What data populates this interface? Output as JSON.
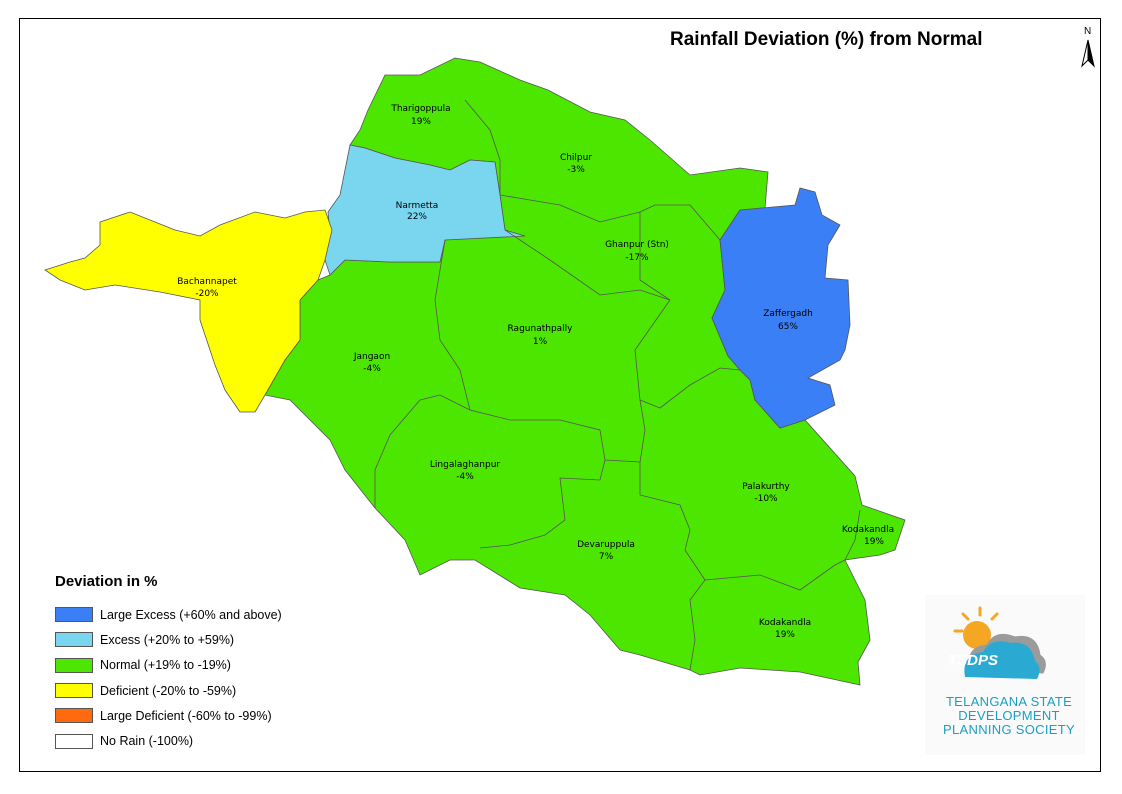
{
  "title": "Rainfall Deviation (%) from Normal",
  "north_label": "N",
  "legend": {
    "title": "Deviation in %",
    "items": [
      {
        "label": "Large Excess (+60% and above)",
        "color": "#3a7ff5"
      },
      {
        "label": "Excess (+20% to +59%)",
        "color": "#7ad6ef"
      },
      {
        "label": "Normal (+19% to -19%)",
        "color": "#4ce600"
      },
      {
        "label": "Deficient (-20% to -59%)",
        "color": "#ffff00"
      },
      {
        "label": "Large Deficient (-60% to -99%)",
        "color": "#ff6a0f"
      },
      {
        "label": "No Rain (-100%)",
        "color": "#ffffff"
      }
    ]
  },
  "mandals": [
    {
      "name": "Tharigoppula",
      "value": "19%",
      "category": "normal"
    },
    {
      "name": "Chilpur",
      "value": "-3%",
      "category": "normal"
    },
    {
      "name": "Narmetta",
      "value": "22%",
      "category": "excess"
    },
    {
      "name": "Bachannapet",
      "value": "-20%",
      "category": "deficient"
    },
    {
      "name": "Ghanpur (Stn)",
      "value": "-17%",
      "category": "normal"
    },
    {
      "name": "Zaffergadh",
      "value": "65%",
      "category": "large_excess"
    },
    {
      "name": "Ragunathpally",
      "value": "1%",
      "category": "normal"
    },
    {
      "name": "Jangaon",
      "value": "-4%",
      "category": "normal"
    },
    {
      "name": "Lingalaghanpur",
      "value": "-4%",
      "category": "normal"
    },
    {
      "name": "Palakurthy",
      "value": "-10%",
      "category": "normal"
    },
    {
      "name": "Kodakandla",
      "value": "19%",
      "category": "normal"
    },
    {
      "name": "Devaruppula",
      "value": "7%",
      "category": "normal"
    },
    {
      "name": "Kodakandla",
      "value": "19%",
      "category": "normal"
    }
  ],
  "logo": {
    "name": "TSDPS",
    "text_line1": "TELANGANA STATE",
    "text_line2": "DEVELOPMENT",
    "text_line3": "PLANNING SOCIETY"
  }
}
